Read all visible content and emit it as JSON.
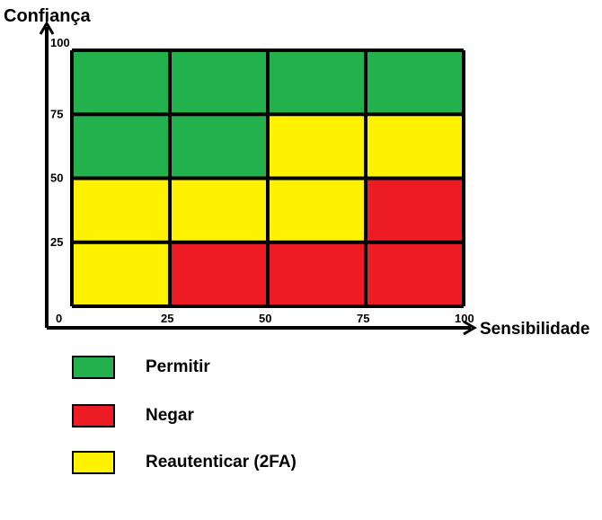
{
  "chart_data": {
    "type": "heatmap",
    "title": "",
    "xlabel": "Sensibilidade",
    "ylabel": "Confiança",
    "xlim": [
      0,
      100
    ],
    "ylim": [
      0,
      100
    ],
    "x_ticks": [
      "0",
      "25",
      "50",
      "75",
      "100"
    ],
    "y_ticks": [
      "25",
      "50",
      "75",
      "100"
    ],
    "x_bins": [
      [
        0,
        25
      ],
      [
        25,
        50
      ],
      [
        50,
        75
      ],
      [
        75,
        100
      ]
    ],
    "y_bins": [
      [
        0,
        25
      ],
      [
        25,
        50
      ],
      [
        50,
        75
      ],
      [
        75,
        100
      ]
    ],
    "cells": [
      [
        "reauth",
        "deny",
        "deny",
        "deny"
      ],
      [
        "reauth",
        "reauth",
        "reauth",
        "deny"
      ],
      [
        "allow",
        "allow",
        "reauth",
        "reauth"
      ],
      [
        "allow",
        "allow",
        "allow",
        "allow"
      ]
    ],
    "categories": {
      "allow": {
        "label": "Permitir",
        "color": "#22b14c"
      },
      "deny": {
        "label": "Negar",
        "color": "#ed1c24"
      },
      "reauth": {
        "label": "Reautenticar (2FA)",
        "color": "#fff200"
      }
    },
    "legend": [
      "allow",
      "deny",
      "reauth"
    ],
    "legend_position": "bottom-left",
    "grid": true
  }
}
